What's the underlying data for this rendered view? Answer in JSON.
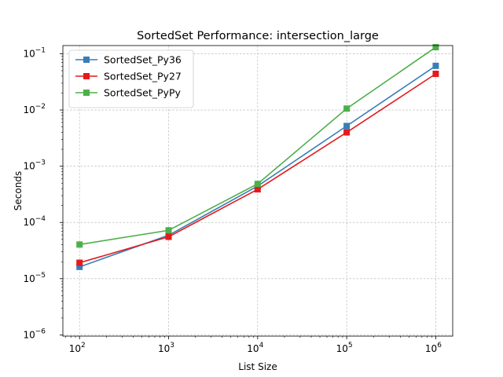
{
  "chart_data": {
    "type": "line",
    "title": "SortedSet Performance: intersection_large",
    "xlabel": "List Size",
    "ylabel": "Seconds",
    "xscale": "log",
    "yscale": "log",
    "xlim": [
      65,
      1550000
    ],
    "ylim": [
      9.5e-07,
      0.14
    ],
    "grid": true,
    "legend_position": "top-left",
    "x": [
      100,
      1000,
      10000,
      100000,
      1000000
    ],
    "xticks": [
      {
        "base": "10",
        "exp": "2",
        "value": 100
      },
      {
        "base": "10",
        "exp": "3",
        "value": 1000
      },
      {
        "base": "10",
        "exp": "4",
        "value": 10000
      },
      {
        "base": "10",
        "exp": "5",
        "value": 100000
      },
      {
        "base": "10",
        "exp": "6",
        "value": 1000000
      }
    ],
    "yticks": [
      {
        "base": "10",
        "exp": "−6",
        "value": 1e-06
      },
      {
        "base": "10",
        "exp": "−5",
        "value": 1e-05
      },
      {
        "base": "10",
        "exp": "−4",
        "value": 0.0001
      },
      {
        "base": "10",
        "exp": "−3",
        "value": 0.001
      },
      {
        "base": "10",
        "exp": "−2",
        "value": 0.01
      },
      {
        "base": "10",
        "exp": "−1",
        "value": 0.1
      }
    ],
    "series": [
      {
        "name": "SortedSet_Py36",
        "color": "#377eb8",
        "values": [
          1.62e-05,
          5.92e-05,
          0.000443,
          0.0052,
          0.061
        ]
      },
      {
        "name": "SortedSet_Py27",
        "color": "#e41a1c",
        "values": [
          1.92e-05,
          5.55e-05,
          0.000388,
          0.004,
          0.044
        ]
      },
      {
        "name": "SortedSet_PyPy",
        "color": "#4daf4a",
        "values": [
          4.05e-05,
          7.25e-05,
          0.000485,
          0.0106,
          0.131
        ]
      }
    ]
  }
}
